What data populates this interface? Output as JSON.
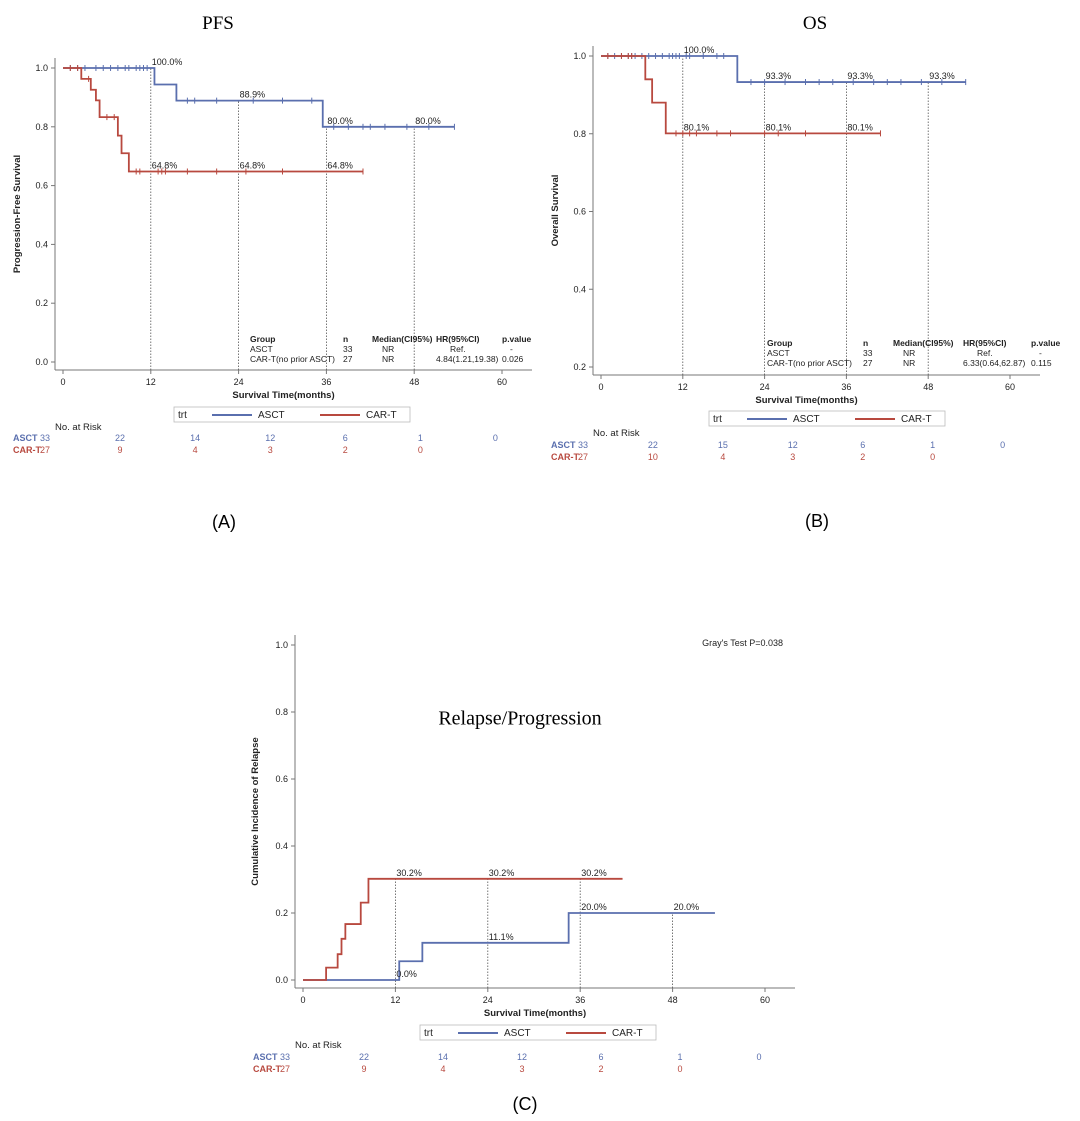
{
  "chart_data": [
    {
      "id": "A",
      "type": "line",
      "title": "PFS",
      "caption": "(A)",
      "xlabel": "Survival Time(months)",
      "ylabel": "Progression-Free Survival",
      "xticks": [
        "0",
        "12",
        "24",
        "36",
        "48",
        "60"
      ],
      "yticks": [
        "0.0",
        "0.2",
        "0.4",
        "0.6",
        "0.8",
        "1.0"
      ],
      "xlim": [
        0,
        60
      ],
      "ylim": [
        0,
        1
      ],
      "legend": {
        "title": "trt",
        "entries": [
          "ASCT",
          "CAR-T"
        ],
        "placement": "bottom"
      },
      "colors": {
        "ASCT": "#5a6fae",
        "CAR-T": "#b8493f"
      },
      "series": [
        {
          "name": "ASCT",
          "steps": [
            [
              0,
              1.0
            ],
            [
              12.5,
              0.944
            ],
            [
              15.5,
              0.889
            ],
            [
              35.5,
              0.8
            ],
            [
              53.5,
              0.8
            ]
          ],
          "censors": [
            1,
            2,
            3,
            4.5,
            5.5,
            6.5,
            7.5,
            8.5,
            9,
            10,
            10.5,
            11,
            11.5,
            17,
            18,
            21,
            26,
            30,
            34,
            37,
            39,
            41,
            42,
            44,
            47,
            50,
            53.5
          ]
        },
        {
          "name": "CAR-T",
          "steps": [
            [
              0,
              1.0
            ],
            [
              2.5,
              0.963
            ],
            [
              3.8,
              0.926
            ],
            [
              4.5,
              0.89
            ],
            [
              5,
              0.833
            ],
            [
              7.5,
              0.77
            ],
            [
              8,
              0.71
            ],
            [
              9,
              0.648
            ],
            [
              41,
              0.648
            ]
          ],
          "censors": [
            1,
            2,
            3.5,
            6,
            7,
            10,
            10.5,
            13,
            13.5,
            14,
            17,
            21,
            25,
            30,
            41
          ]
        }
      ],
      "landmarks": [
        {
          "x": 12,
          "labels": [
            {
              "y": 1.0,
              "text": "100.0%"
            },
            {
              "y": 0.648,
              "text": "64.8%"
            }
          ]
        },
        {
          "x": 24,
          "labels": [
            {
              "y": 0.889,
              "text": "88.9%"
            },
            {
              "y": 0.648,
              "text": "64.8%"
            }
          ]
        },
        {
          "x": 36,
          "labels": [
            {
              "y": 0.8,
              "text": "80.0%"
            },
            {
              "y": 0.648,
              "text": "64.8%"
            }
          ]
        },
        {
          "x": 48,
          "labels": [
            {
              "y": 0.8,
              "text": "80.0%"
            }
          ]
        }
      ],
      "table": {
        "headers": [
          "Group",
          "n",
          "Median(CI95%)",
          "HR(95%CI)",
          "p.value"
        ],
        "rows": [
          [
            "ASCT",
            "33",
            "NR",
            "Ref.",
            "-"
          ],
          [
            "CAR-T(no prior ASCT)",
            "27",
            "NR",
            "4.84(1.21,19.38)",
            "0.026"
          ]
        ]
      },
      "risk": {
        "title": "No. at Risk",
        "rows": [
          {
            "label": "ASCT",
            "values": [
              "33",
              "22",
              "14",
              "12",
              "6",
              "1",
              "0"
            ]
          },
          {
            "label": "CAR-T",
            "values": [
              "27",
              "9",
              "4",
              "3",
              "2",
              "0"
            ]
          }
        ]
      }
    },
    {
      "id": "B",
      "type": "line",
      "title": "OS",
      "caption": "(B)",
      "xlabel": "Survival Time(months)",
      "ylabel": "Overall Survival",
      "xticks": [
        "0",
        "12",
        "24",
        "36",
        "48",
        "60"
      ],
      "yticks": [
        "0.2",
        "0.4",
        "0.6",
        "0.8",
        "1.0"
      ],
      "xlim": [
        0,
        60
      ],
      "ylim": [
        0.2,
        1
      ],
      "legend": {
        "title": "trt",
        "entries": [
          "ASCT",
          "CAR-T"
        ],
        "placement": "bottom"
      },
      "colors": {
        "ASCT": "#5a6fae",
        "CAR-T": "#b8493f"
      },
      "series": [
        {
          "name": "ASCT",
          "steps": [
            [
              0,
              1.0
            ],
            [
              20,
              0.933
            ],
            [
              53.5,
              0.933
            ]
          ],
          "censors": [
            1,
            2,
            3,
            4,
            4.5,
            5,
            6,
            7,
            8,
            9,
            10,
            10.5,
            11,
            11.5,
            12.5,
            13,
            15,
            17,
            18,
            22,
            24,
            27,
            30,
            32,
            34,
            37,
            40,
            42,
            44,
            47,
            50,
            53.5
          ]
        },
        {
          "name": "CAR-T",
          "steps": [
            [
              0,
              1.0
            ],
            [
              6.5,
              0.94
            ],
            [
              7.5,
              0.88
            ],
            [
              9.5,
              0.801
            ],
            [
              41,
              0.801
            ]
          ],
          "censors": [
            1,
            3,
            4,
            4.5,
            11,
            12,
            13,
            14,
            17,
            19,
            24,
            26,
            30,
            41
          ]
        }
      ],
      "landmarks": [
        {
          "x": 12,
          "labels": [
            {
              "y": 1.0,
              "text": "100.0%"
            },
            {
              "y": 0.801,
              "text": "80.1%"
            }
          ]
        },
        {
          "x": 24,
          "labels": [
            {
              "y": 0.933,
              "text": "93.3%"
            },
            {
              "y": 0.801,
              "text": "80.1%"
            }
          ]
        },
        {
          "x": 36,
          "labels": [
            {
              "y": 0.933,
              "text": "93.3%"
            },
            {
              "y": 0.801,
              "text": "80.1%"
            }
          ]
        },
        {
          "x": 48,
          "labels": [
            {
              "y": 0.933,
              "text": "93.3%"
            }
          ]
        }
      ],
      "table": {
        "headers": [
          "Group",
          "n",
          "Median(CI95%)",
          "HR(95%CI)",
          "p.value"
        ],
        "rows": [
          [
            "ASCT",
            "33",
            "NR",
            "Ref.",
            "-"
          ],
          [
            "CAR-T(no prior ASCT)",
            "27",
            "NR",
            "6.33(0.64,62.87)",
            "0.115"
          ]
        ]
      },
      "risk": {
        "title": "No. at Risk",
        "rows": [
          {
            "label": "ASCT",
            "values": [
              "33",
              "22",
              "15",
              "12",
              "6",
              "1",
              "0"
            ]
          },
          {
            "label": "CAR-T",
            "values": [
              "27",
              "10",
              "4",
              "3",
              "2",
              "0"
            ]
          }
        ]
      }
    },
    {
      "id": "C",
      "type": "line",
      "title": "Relapse/Progression",
      "caption": "(C)",
      "xlabel": "Survival Time(months)",
      "ylabel": "Cumulative Incidence of Relapse",
      "xticks": [
        "0",
        "12",
        "24",
        "36",
        "48",
        "60"
      ],
      "yticks": [
        "0.0",
        "0.2",
        "0.4",
        "0.6",
        "0.8",
        "1.0"
      ],
      "xlim": [
        0,
        60
      ],
      "ylim": [
        0,
        1
      ],
      "annotation": "Gray's Test P=0.038",
      "legend": {
        "title": "trt",
        "entries": [
          "ASCT",
          "CAR-T"
        ],
        "placement": "bottom"
      },
      "colors": {
        "ASCT": "#5a6fae",
        "CAR-T": "#b8493f"
      },
      "series": [
        {
          "name": "ASCT",
          "steps": [
            [
              0,
              0.0
            ],
            [
              12.5,
              0.056
            ],
            [
              15.5,
              0.111
            ],
            [
              34.5,
              0.2
            ],
            [
              53.5,
              0.2
            ]
          ],
          "censors": []
        },
        {
          "name": "CAR-T",
          "steps": [
            [
              0,
              0.0
            ],
            [
              3,
              0.037
            ],
            [
              4.5,
              0.077
            ],
            [
              5,
              0.123
            ],
            [
              5.5,
              0.167
            ],
            [
              7.5,
              0.231
            ],
            [
              8.5,
              0.302
            ],
            [
              41.5,
              0.302
            ]
          ],
          "censors": []
        }
      ],
      "landmarks": [
        {
          "x": 12,
          "labels": [
            {
              "y": 0.0,
              "text": "0.0%"
            },
            {
              "y": 0.302,
              "text": "30.2%"
            }
          ]
        },
        {
          "x": 24,
          "labels": [
            {
              "y": 0.111,
              "text": "11.1%"
            },
            {
              "y": 0.302,
              "text": "30.2%"
            }
          ]
        },
        {
          "x": 36,
          "labels": [
            {
              "y": 0.2,
              "text": "20.0%"
            },
            {
              "y": 0.302,
              "text": "30.2%"
            }
          ]
        },
        {
          "x": 48,
          "labels": [
            {
              "y": 0.2,
              "text": "20.0%"
            }
          ]
        }
      ],
      "risk": {
        "title": "No. at Risk",
        "rows": [
          {
            "label": "ASCT",
            "values": [
              "33",
              "22",
              "14",
              "12",
              "6",
              "1",
              "0"
            ]
          },
          {
            "label": "CAR-T",
            "values": [
              "27",
              "9",
              "4",
              "3",
              "2",
              "0"
            ]
          }
        ]
      }
    }
  ]
}
